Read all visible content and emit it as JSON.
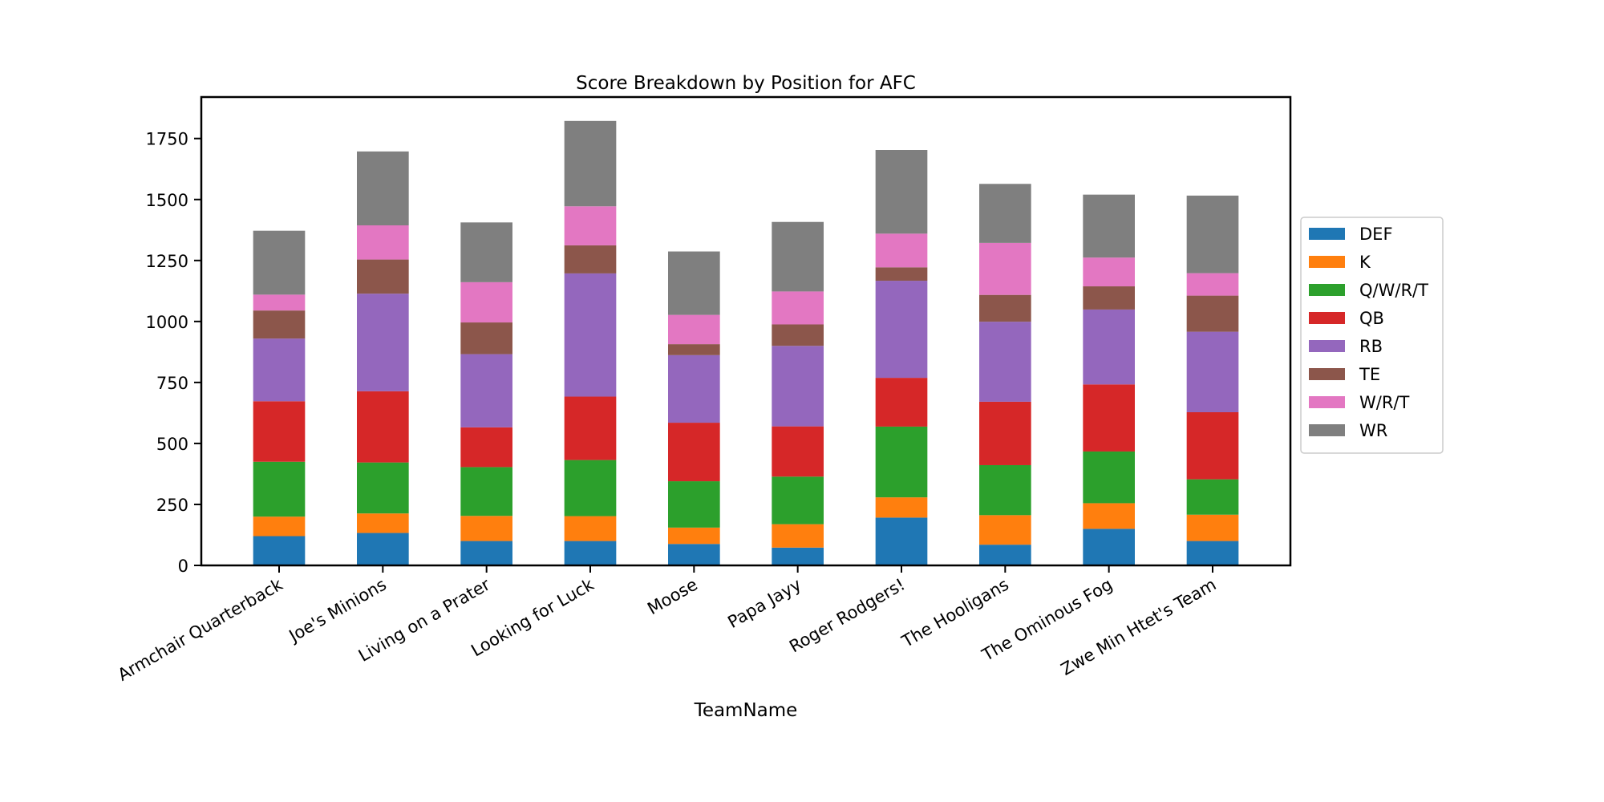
{
  "chart_data": {
    "type": "bar",
    "stacked": true,
    "title": "Score Breakdown by Position for AFC",
    "xlabel": "TeamName",
    "ylabel": "",
    "ylim": [
      0,
      1920
    ],
    "yticks": [
      0,
      250,
      500,
      750,
      1000,
      1250,
      1500,
      1750
    ],
    "grid": false,
    "legend_position": "right",
    "categories": [
      "Armchair Quarterback",
      "Joe's Minions",
      "Living on a Prater",
      "Looking for Luck",
      "Moose",
      "Papa Jayy",
      "Roger Rodgers!",
      "The Hooligans",
      "The Ominous Fog",
      "Zwe Min Htet's Team"
    ],
    "series": [
      {
        "name": "DEF",
        "color": "#1f77b4",
        "values": [
          120,
          133,
          100,
          100,
          88,
          73,
          196,
          85,
          150,
          100
        ]
      },
      {
        "name": "K",
        "color": "#ff7f0e",
        "values": [
          80,
          80,
          103,
          102,
          67,
          96,
          83,
          121,
          105,
          108
        ]
      },
      {
        "name": "Q/W/R/T",
        "color": "#2ca02c",
        "values": [
          225,
          209,
          200,
          230,
          190,
          195,
          290,
          205,
          212,
          145
        ]
      },
      {
        "name": "QB",
        "color": "#d62728",
        "values": [
          248,
          292,
          163,
          260,
          240,
          206,
          200,
          260,
          275,
          275
        ]
      },
      {
        "name": "RB",
        "color": "#9467bd",
        "values": [
          257,
          400,
          300,
          505,
          277,
          330,
          398,
          328,
          307,
          330
        ]
      },
      {
        "name": "TE",
        "color": "#8c564b",
        "values": [
          115,
          140,
          130,
          115,
          45,
          88,
          55,
          110,
          95,
          148
        ]
      },
      {
        "name": "W/R/T",
        "color": "#e377c2",
        "values": [
          65,
          140,
          165,
          160,
          120,
          135,
          138,
          213,
          118,
          92
        ]
      },
      {
        "name": "WR",
        "color": "#7f7f7f",
        "values": [
          262,
          303,
          245,
          350,
          260,
          285,
          343,
          242,
          258,
          318
        ]
      }
    ]
  }
}
